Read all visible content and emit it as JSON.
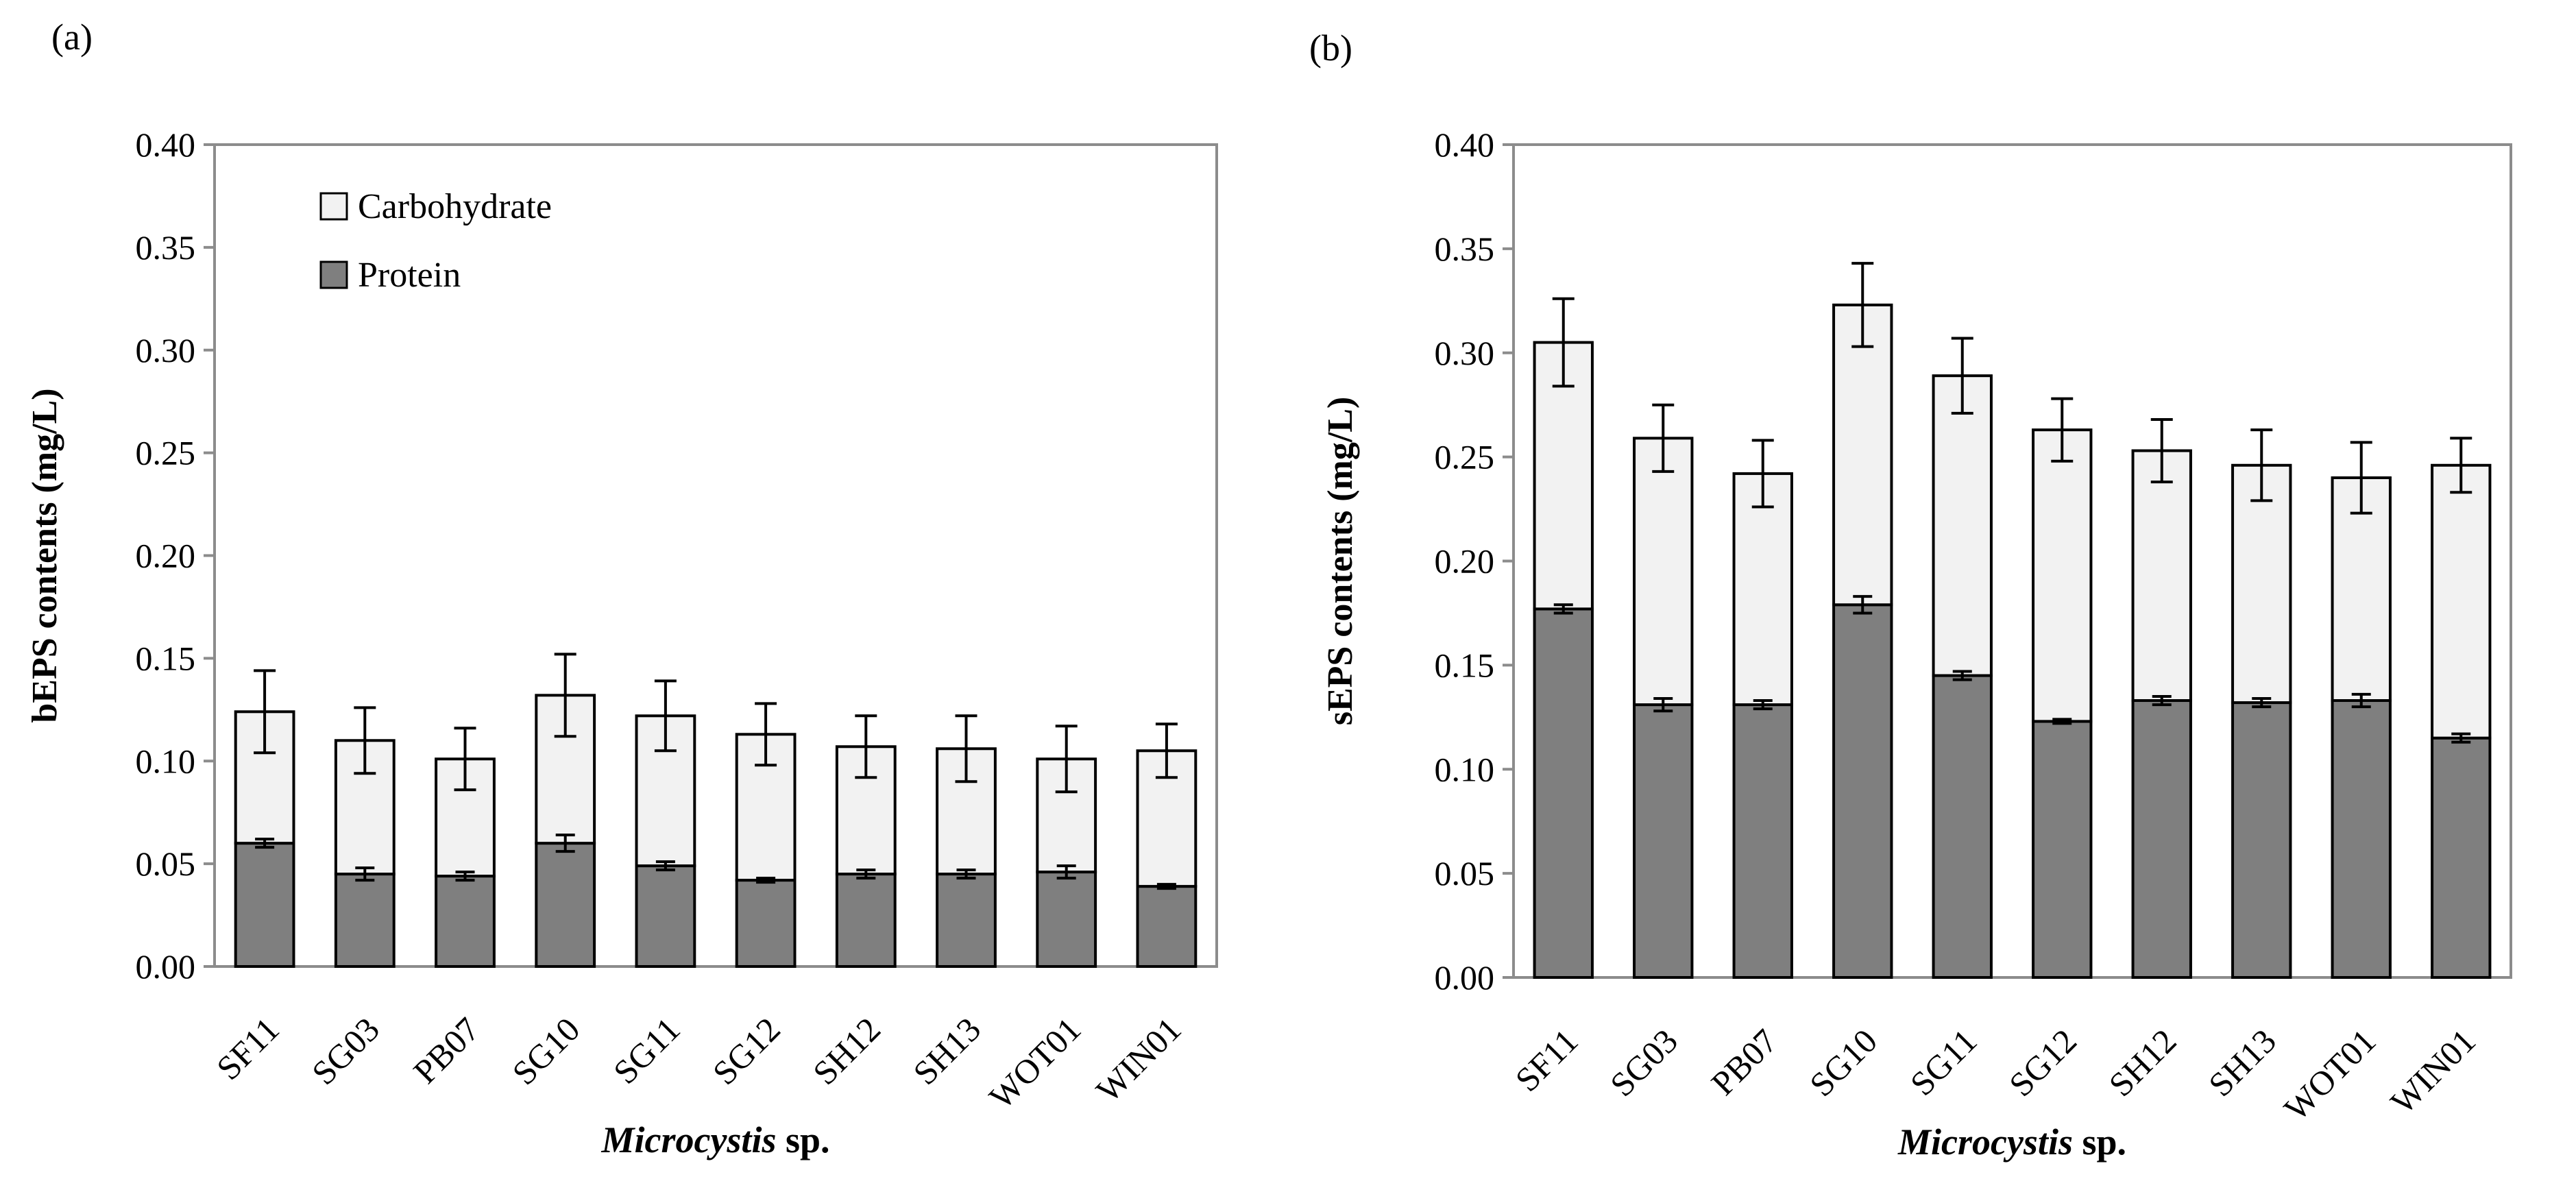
{
  "figure": {
    "shared_categories_note": "",
    "colors": {
      "protein": "#7f7f7f",
      "carbohydrate": "#f2f2f2",
      "axis": "#8c8c8c",
      "stroke": "#000000"
    }
  },
  "chart_data": [
    {
      "panel_label": "(a)",
      "type": "bar",
      "stacked": true,
      "categories": [
        "SF11",
        "SG03",
        "PB07",
        "SG10",
        "SG11",
        "SG12",
        "SH12",
        "SH13",
        "WOT01",
        "WIN01"
      ],
      "series": [
        {
          "name": "Protein",
          "values": [
            0.06,
            0.045,
            0.044,
            0.06,
            0.049,
            0.042,
            0.045,
            0.045,
            0.046,
            0.039
          ],
          "errors": [
            0.002,
            0.003,
            0.002,
            0.004,
            0.002,
            0.001,
            0.002,
            0.002,
            0.003,
            0.001
          ]
        },
        {
          "name": "Carbohydrate",
          "values": [
            0.064,
            0.065,
            0.057,
            0.072,
            0.073,
            0.071,
            0.062,
            0.061,
            0.055,
            0.066
          ],
          "errors": [
            0.02,
            0.016,
            0.015,
            0.02,
            0.017,
            0.015,
            0.015,
            0.016,
            0.016,
            0.013
          ]
        }
      ],
      "title": "",
      "xlabel_italic": "Microcystis",
      "xlabel_rest": " sp.",
      "ylabel": "bEPS contents (mg/L)",
      "ylim": [
        0,
        0.4
      ],
      "yticks": [
        "0.00",
        "0.05",
        "0.10",
        "0.15",
        "0.20",
        "0.25",
        "0.30",
        "0.35",
        "0.40"
      ],
      "grid": false,
      "legend": {
        "placement": "top-left",
        "entries": [
          "Carbohydrate",
          "Protein"
        ]
      }
    },
    {
      "panel_label": "(b)",
      "type": "bar",
      "stacked": true,
      "categories": [
        "SF11",
        "SG03",
        "PB07",
        "SG10",
        "SG11",
        "SG12",
        "SH12",
        "SH13",
        "WOT01",
        "WIN01"
      ],
      "series": [
        {
          "name": "Protein",
          "values": [
            0.177,
            0.131,
            0.131,
            0.179,
            0.145,
            0.123,
            0.133,
            0.132,
            0.133,
            0.115
          ],
          "errors": [
            0.002,
            0.003,
            0.002,
            0.004,
            0.002,
            0.001,
            0.002,
            0.002,
            0.003,
            0.002
          ]
        },
        {
          "name": "Carbohydrate",
          "values": [
            0.128,
            0.128,
            0.111,
            0.144,
            0.144,
            0.14,
            0.12,
            0.114,
            0.107,
            0.131
          ],
          "errors": [
            0.021,
            0.016,
            0.016,
            0.02,
            0.018,
            0.015,
            0.015,
            0.017,
            0.017,
            0.013
          ]
        }
      ],
      "title": "",
      "xlabel_italic": "Microcystis",
      "xlabel_rest": " sp.",
      "ylabel": "sEPS contents (mg/L)",
      "ylim": [
        0,
        0.4
      ],
      "yticks": [
        "0.00",
        "0.05",
        "0.10",
        "0.15",
        "0.20",
        "0.25",
        "0.30",
        "0.35",
        "0.40"
      ],
      "grid": false,
      "legend": null
    }
  ]
}
